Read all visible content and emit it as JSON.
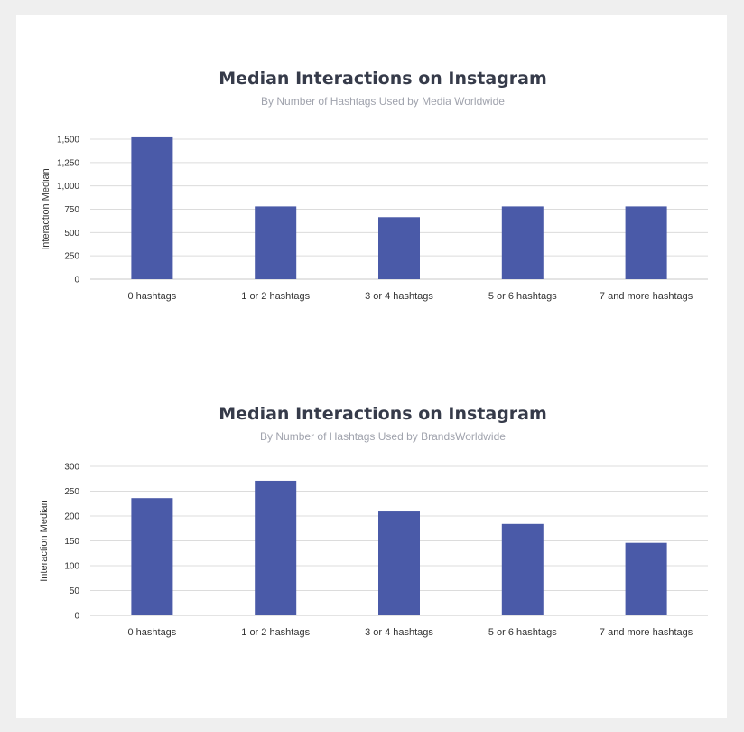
{
  "chart_data": [
    {
      "type": "bar",
      "title": "Median Interactions on Instagram",
      "subtitle": "By Number of Hashtags Used by Media Worldwide",
      "ylabel": "Interaction Median",
      "xlabel": "",
      "categories": [
        "0 hashtags",
        "1 or 2 hashtags",
        "3 or 4 hashtags",
        "5 or 6 hashtags",
        "7 and more hashtags"
      ],
      "values": [
        1520,
        780,
        665,
        780,
        780
      ],
      "ylim": [
        0,
        1500
      ],
      "yticks": [
        "0",
        "250",
        "500",
        "750",
        "1,000",
        "1,250",
        "1,500"
      ],
      "grid": true,
      "bar_color": "#4a5aa8"
    },
    {
      "type": "bar",
      "title": "Median Interactions on Instagram",
      "subtitle": "By Number of Hashtags Used by BrandsWorldwide",
      "ylabel": "Interaction Median",
      "xlabel": "",
      "categories": [
        "0 hashtags",
        "1 or 2 hashtags",
        "3 or 4 hashtags",
        "5 or 6 hashtags",
        "7 and more hashtags"
      ],
      "values": [
        236,
        271,
        209,
        184,
        146
      ],
      "ylim": [
        0,
        300
      ],
      "yticks": [
        "0",
        "50",
        "100",
        "150",
        "200",
        "250",
        "300"
      ],
      "grid": true,
      "bar_color": "#4a5aa8"
    }
  ]
}
